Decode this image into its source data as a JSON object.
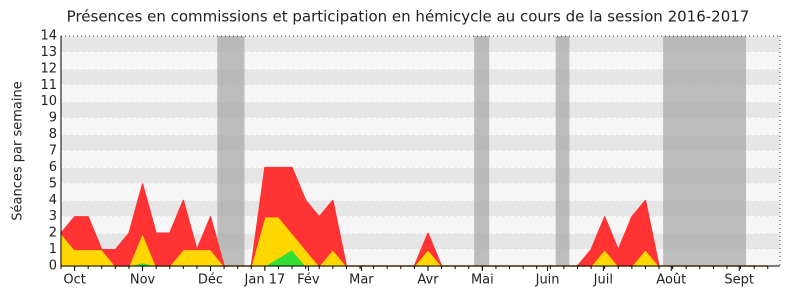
{
  "chart_data": {
    "type": "stacked-area",
    "title": "Présences en commissions et participation en hémicycle au cours de la session 2016-2017",
    "y_label": "Séances par semaine",
    "x": [
      0,
      1,
      2,
      3,
      4,
      5,
      6,
      7,
      8,
      9,
      10,
      11,
      12,
      13,
      14,
      15,
      16,
      17,
      18,
      19,
      20,
      21,
      22,
      23,
      24,
      25,
      26,
      27,
      28,
      29,
      30,
      31,
      32,
      33,
      34,
      35,
      36,
      37,
      38,
      39,
      40,
      41,
      42,
      43,
      44,
      45,
      46,
      47,
      48,
      49,
      50,
      51,
      52
    ],
    "series": [
      {
        "color": "#33dd33",
        "values": [
          0,
          0,
          0,
          0,
          0,
          0,
          0.2,
          0,
          0,
          0,
          0,
          0,
          0,
          0,
          0,
          0,
          0.5,
          1,
          0,
          0,
          0,
          0,
          0,
          0,
          0,
          0,
          0,
          0,
          0,
          0,
          0,
          0,
          0,
          0,
          0,
          0,
          0,
          0,
          0,
          0,
          0,
          0,
          0,
          0,
          0,
          0,
          0,
          0,
          0,
          0,
          0,
          0,
          0
        ]
      },
      {
        "color": "#ffd700",
        "values": [
          2,
          1,
          1,
          1,
          0,
          0,
          1.8,
          0,
          0,
          1,
          1,
          1,
          0,
          0,
          0,
          3,
          2.5,
          1,
          1,
          0,
          1,
          0,
          0,
          0,
          0,
          0,
          0,
          1,
          0,
          0,
          0,
          0,
          0,
          0,
          0,
          0,
          0,
          0,
          0,
          0,
          1,
          0,
          0,
          1,
          0,
          0,
          0,
          0,
          0,
          0,
          0,
          0,
          0
        ]
      },
      {
        "color": "#ff3333",
        "values": [
          0,
          2,
          2,
          0,
          1,
          2,
          3,
          2,
          2,
          3,
          0,
          2,
          0,
          0,
          0,
          3,
          3,
          4,
          3,
          3,
          3,
          0,
          0,
          0,
          0,
          0,
          0,
          1,
          0,
          0,
          0,
          0,
          0,
          0,
          0,
          0,
          0,
          0,
          0,
          1,
          2,
          1,
          3,
          3,
          0,
          0,
          0,
          0,
          0,
          0,
          0,
          0,
          0
        ]
      }
    ],
    "xlim": [
      0,
      52.9
    ],
    "xticks": [
      {
        "value": 1,
        "label": "Oct"
      },
      {
        "value": 6,
        "label": "Nov"
      },
      {
        "value": 11,
        "label": "Déc"
      },
      {
        "value": 15,
        "label": "Jan 17"
      },
      {
        "value": 18.2,
        "label": "Fév"
      },
      {
        "value": 22.1,
        "label": "Mar"
      },
      {
        "value": 27,
        "label": "Avr"
      },
      {
        "value": 31,
        "label": "Mai"
      },
      {
        "value": 35.8,
        "label": "Juin"
      },
      {
        "value": 39.9,
        "label": "Juil"
      },
      {
        "value": 44.9,
        "label": "Août"
      },
      {
        "value": 49.9,
        "label": "Sept"
      }
    ],
    "ylim": [
      0,
      14
    ],
    "yticks": [
      0,
      1,
      2,
      3,
      4,
      5,
      6,
      7,
      8,
      9,
      10,
      11,
      12,
      13,
      14
    ],
    "shaded": [
      [
        11.5,
        13.5
      ],
      [
        30.4,
        31.5
      ],
      [
        36.4,
        37.4
      ],
      [
        44.3,
        50.4
      ]
    ],
    "grid": true
  }
}
